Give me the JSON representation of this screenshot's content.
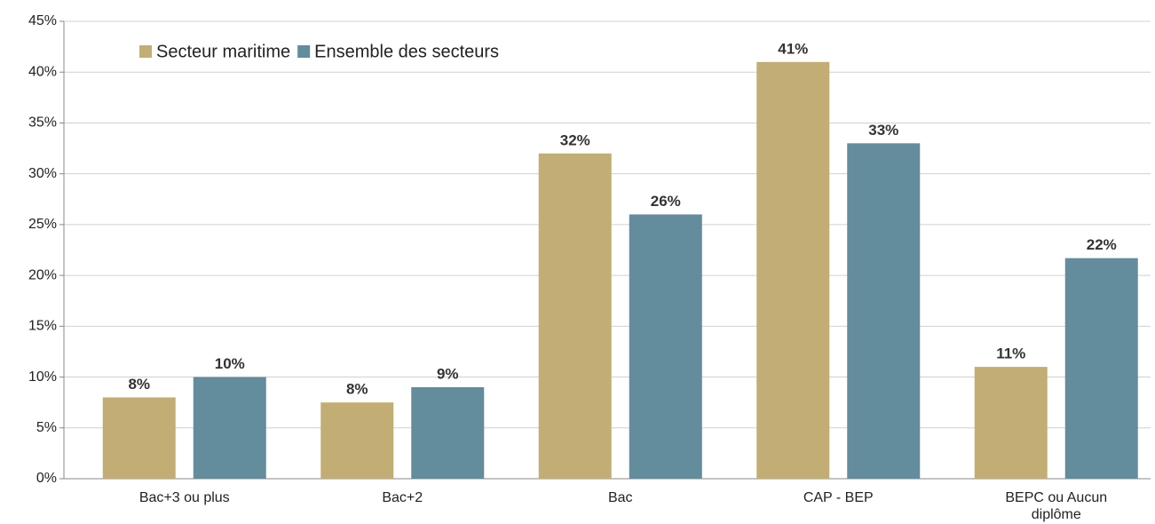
{
  "chart_data": {
    "type": "bar",
    "categories": [
      "Bac+3 ou plus",
      "Bac+2",
      "Bac",
      "CAP - BEP",
      "BEPC ou Aucun diplôme"
    ],
    "series": [
      {
        "name": "Secteur maritime",
        "color": "#c2ae74",
        "values": [
          8,
          7.5,
          32,
          41,
          11
        ],
        "value_labels": [
          "8%",
          "8%",
          "32%",
          "41%",
          "11%"
        ]
      },
      {
        "name": "Ensemble des secteurs",
        "color": "#638c9c",
        "values": [
          10,
          9,
          26,
          33,
          21.7
        ],
        "value_labels": [
          "10%",
          "9%",
          "26%",
          "33%",
          "22%"
        ]
      }
    ],
    "ylim": [
      0,
      45
    ],
    "yticks": [
      {
        "value": 0,
        "label": "0%"
      },
      {
        "value": 5,
        "label": "5%"
      },
      {
        "value": 10,
        "label": "10%"
      },
      {
        "value": 15,
        "label": "15%"
      },
      {
        "value": 20,
        "label": "20%"
      },
      {
        "value": 25,
        "label": "25%"
      },
      {
        "value": 30,
        "label": "30%"
      },
      {
        "value": 35,
        "label": "35%"
      },
      {
        "value": 40,
        "label": "40%"
      },
      {
        "value": 45,
        "label": "45%"
      }
    ],
    "grid": true,
    "legend": "top-left"
  }
}
